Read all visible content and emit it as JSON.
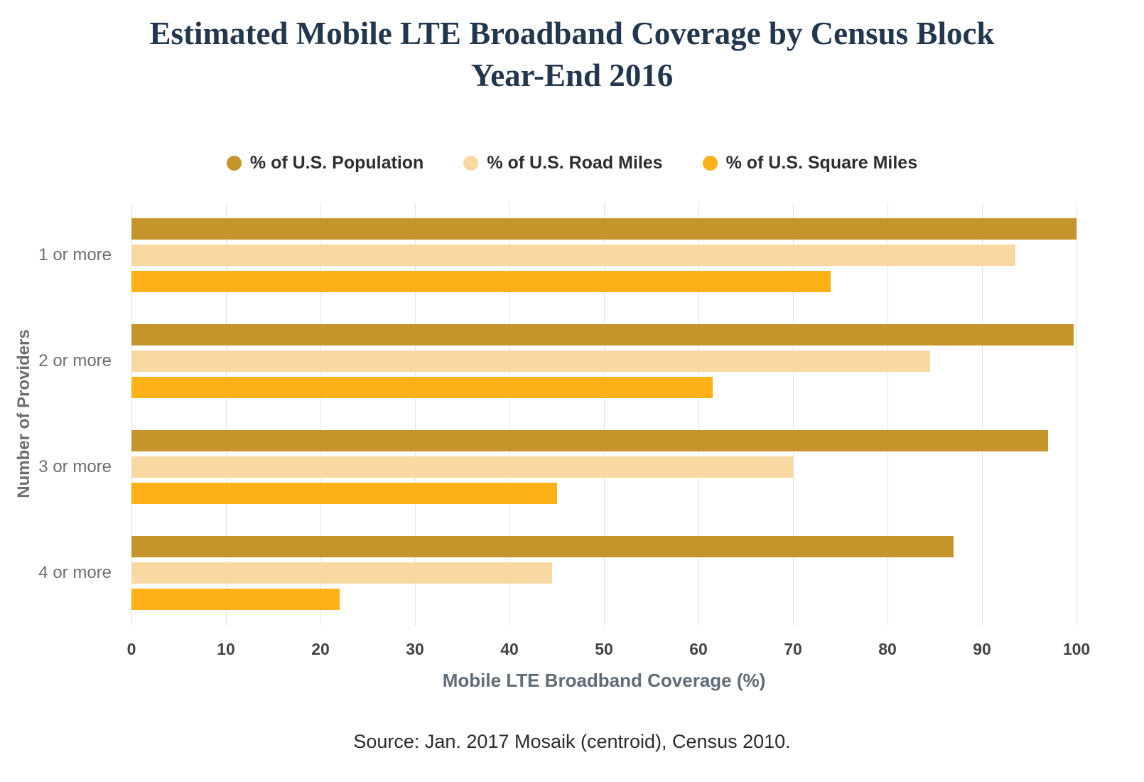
{
  "chart_data": {
    "type": "bar",
    "orientation": "horizontal",
    "title": "Estimated Mobile LTE Broadband Coverage by Census Block Year-End 2016",
    "categories": [
      "1 or more",
      "2 or more",
      "3 or more",
      "4 or more"
    ],
    "series": [
      {
        "name": "% of U.S. Population",
        "color": "#C5952B",
        "values": [
          100,
          99.7,
          97,
          87
        ]
      },
      {
        "name": "% of U.S. Road Miles",
        "color": "#FAD8A3",
        "values": [
          93.5,
          84.5,
          70,
          44.5
        ]
      },
      {
        "name": "% of U.S. Square Miles",
        "color": "#FCB116",
        "values": [
          74,
          61.5,
          45,
          22
        ]
      }
    ],
    "xlabel": "Mobile LTE Broadband Coverage (%)",
    "ylabel": "Number of Providers",
    "xlim": [
      0,
      100
    ],
    "xticks": [
      0,
      10,
      20,
      30,
      40,
      50,
      60,
      70,
      80,
      90,
      100
    ],
    "grid": true,
    "legend_position": "top",
    "title_color": "#22374D",
    "source": "Source: Jan. 2017 Mosaik (centroid), Census 2010."
  }
}
